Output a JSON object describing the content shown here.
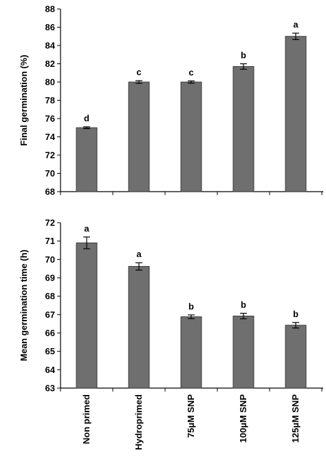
{
  "chart_data": [
    {
      "type": "bar",
      "ylabel": "Final germination (%)",
      "ylim": [
        68,
        88
      ],
      "yticks": [
        68,
        70,
        72,
        74,
        76,
        78,
        80,
        82,
        84,
        86,
        88
      ],
      "categories": [
        "Non primed",
        "Hydroprimed",
        "75µM SNP",
        "100µM SNP",
        "125µM SNP"
      ],
      "values": [
        75.0,
        80.0,
        80.0,
        81.7,
        85.0
      ],
      "errors": [
        0.1,
        0.15,
        0.12,
        0.3,
        0.35
      ],
      "significance": [
        "d",
        "c",
        "c",
        "b",
        "a"
      ],
      "bar_color": "#6f6f6f",
      "grid": false
    },
    {
      "type": "bar",
      "ylabel": "Mean germination time (h)",
      "ylim": [
        63,
        72
      ],
      "yticks": [
        63,
        64,
        65,
        66,
        67,
        68,
        69,
        70,
        71,
        72
      ],
      "categories": [
        "Non primed",
        "Hydroprimed",
        "75µM SNP",
        "100µM SNP",
        "125µM SNP"
      ],
      "values": [
        70.9,
        69.62,
        66.88,
        66.92,
        66.42
      ],
      "errors": [
        0.32,
        0.2,
        0.1,
        0.15,
        0.15
      ],
      "significance": [
        "a",
        "a",
        "b",
        "b",
        "b"
      ],
      "bar_color": "#6f6f6f",
      "grid": false
    }
  ]
}
